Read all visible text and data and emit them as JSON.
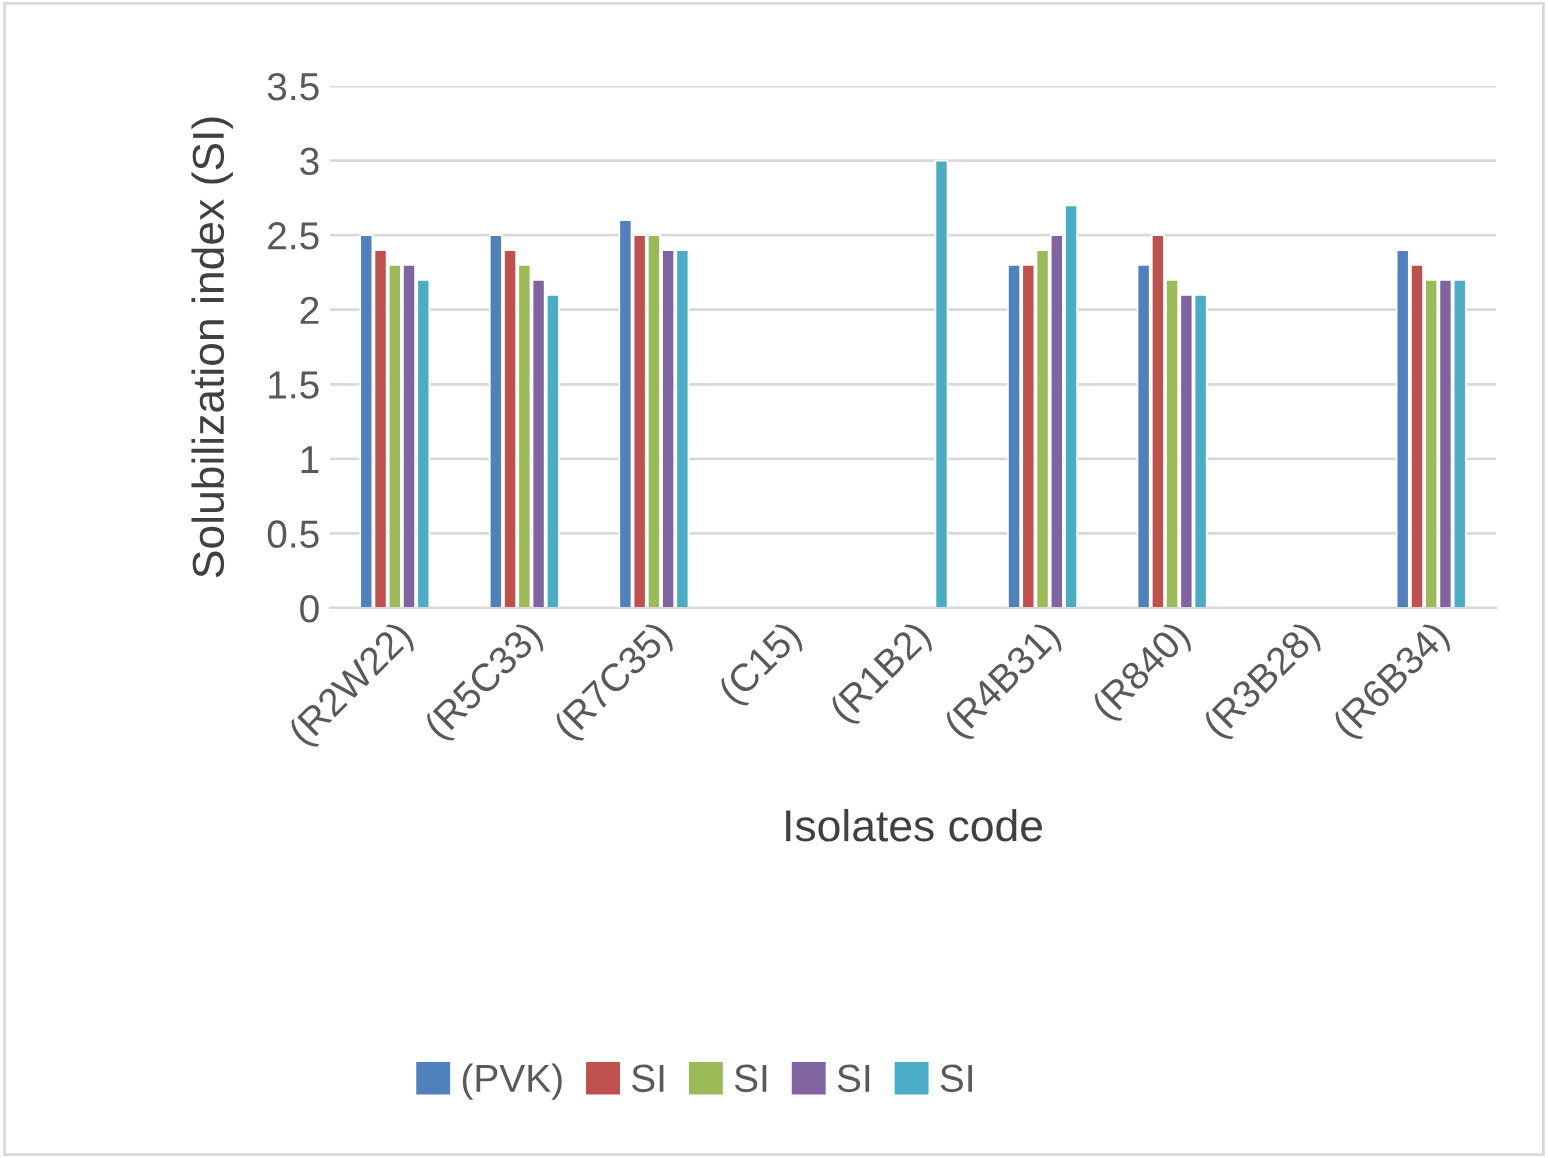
{
  "chart_data": {
    "type": "bar",
    "xlabel": "Isolates code",
    "ylabel": "Solubilization index (SI)",
    "categories": [
      "(R2W22)",
      "(R5C33)",
      "(R7C35)",
      "(C15)",
      "(R1B2)",
      "(R4B31)",
      "(R840)",
      "(R3B28)",
      "(R6B34)"
    ],
    "series": [
      {
        "name": "(PVK)",
        "color": "#4f81bd",
        "values": [
          2.5,
          2.5,
          2.6,
          null,
          null,
          2.3,
          2.3,
          null,
          2.4
        ]
      },
      {
        "name": "SI",
        "color": "#c0504d",
        "values": [
          2.4,
          2.4,
          2.5,
          null,
          null,
          2.3,
          2.5,
          null,
          2.3
        ]
      },
      {
        "name": "SI",
        "color": "#9bbb59",
        "values": [
          2.3,
          2.3,
          2.5,
          null,
          null,
          2.4,
          2.2,
          null,
          2.2
        ]
      },
      {
        "name": "SI",
        "color": "#8064a2",
        "values": [
          2.3,
          2.2,
          2.4,
          null,
          null,
          2.5,
          2.1,
          null,
          2.2
        ]
      },
      {
        "name": "SI",
        "color": "#4bacc6",
        "values": [
          2.2,
          2.1,
          2.4,
          null,
          3.0,
          2.7,
          2.1,
          null,
          2.2
        ]
      }
    ],
    "ylim": [
      0,
      3.5
    ],
    "yticks": [
      0,
      0.5,
      1,
      1.5,
      2,
      2.5,
      3,
      3.5
    ],
    "grid": "y",
    "legend": "bottom"
  }
}
